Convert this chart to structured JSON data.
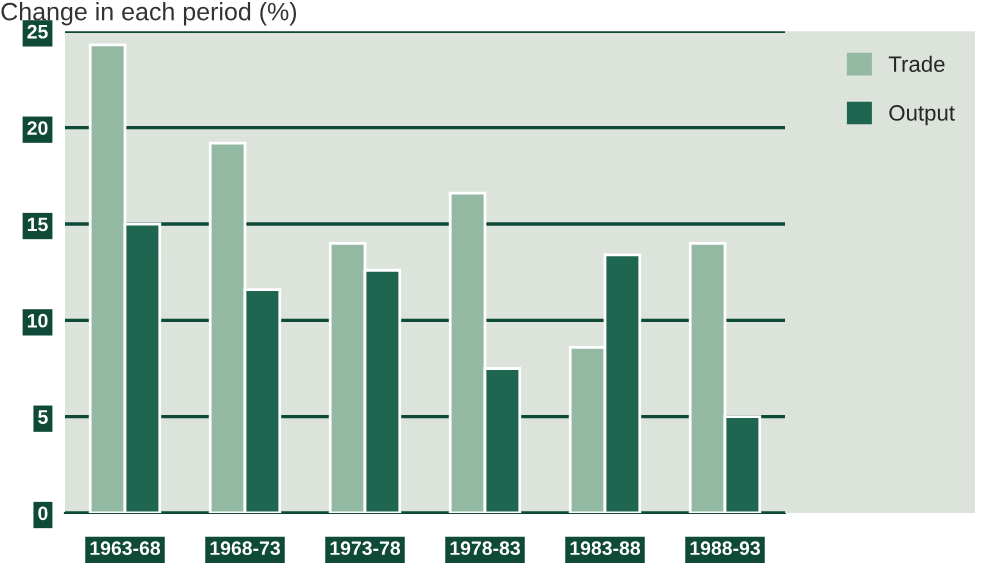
{
  "chart_data": {
    "type": "bar",
    "ylabel": "Change in each period (%)",
    "categories": [
      "1963-68",
      "1968-73",
      "1973-78",
      "1978-83",
      "1983-88",
      "1988-93"
    ],
    "series": [
      {
        "name": "Trade",
        "color": "#93b9a3",
        "values": [
          24.3,
          19.2,
          14.0,
          16.6,
          8.6,
          14.0
        ]
      },
      {
        "name": "Output",
        "color": "#1e6650",
        "values": [
          15.0,
          11.6,
          12.6,
          7.5,
          13.4,
          5.0
        ]
      }
    ],
    "ylim": [
      0,
      25
    ],
    "yticks": [
      0,
      5,
      10,
      15,
      20,
      25
    ],
    "grid": "y",
    "legend": "top right"
  }
}
